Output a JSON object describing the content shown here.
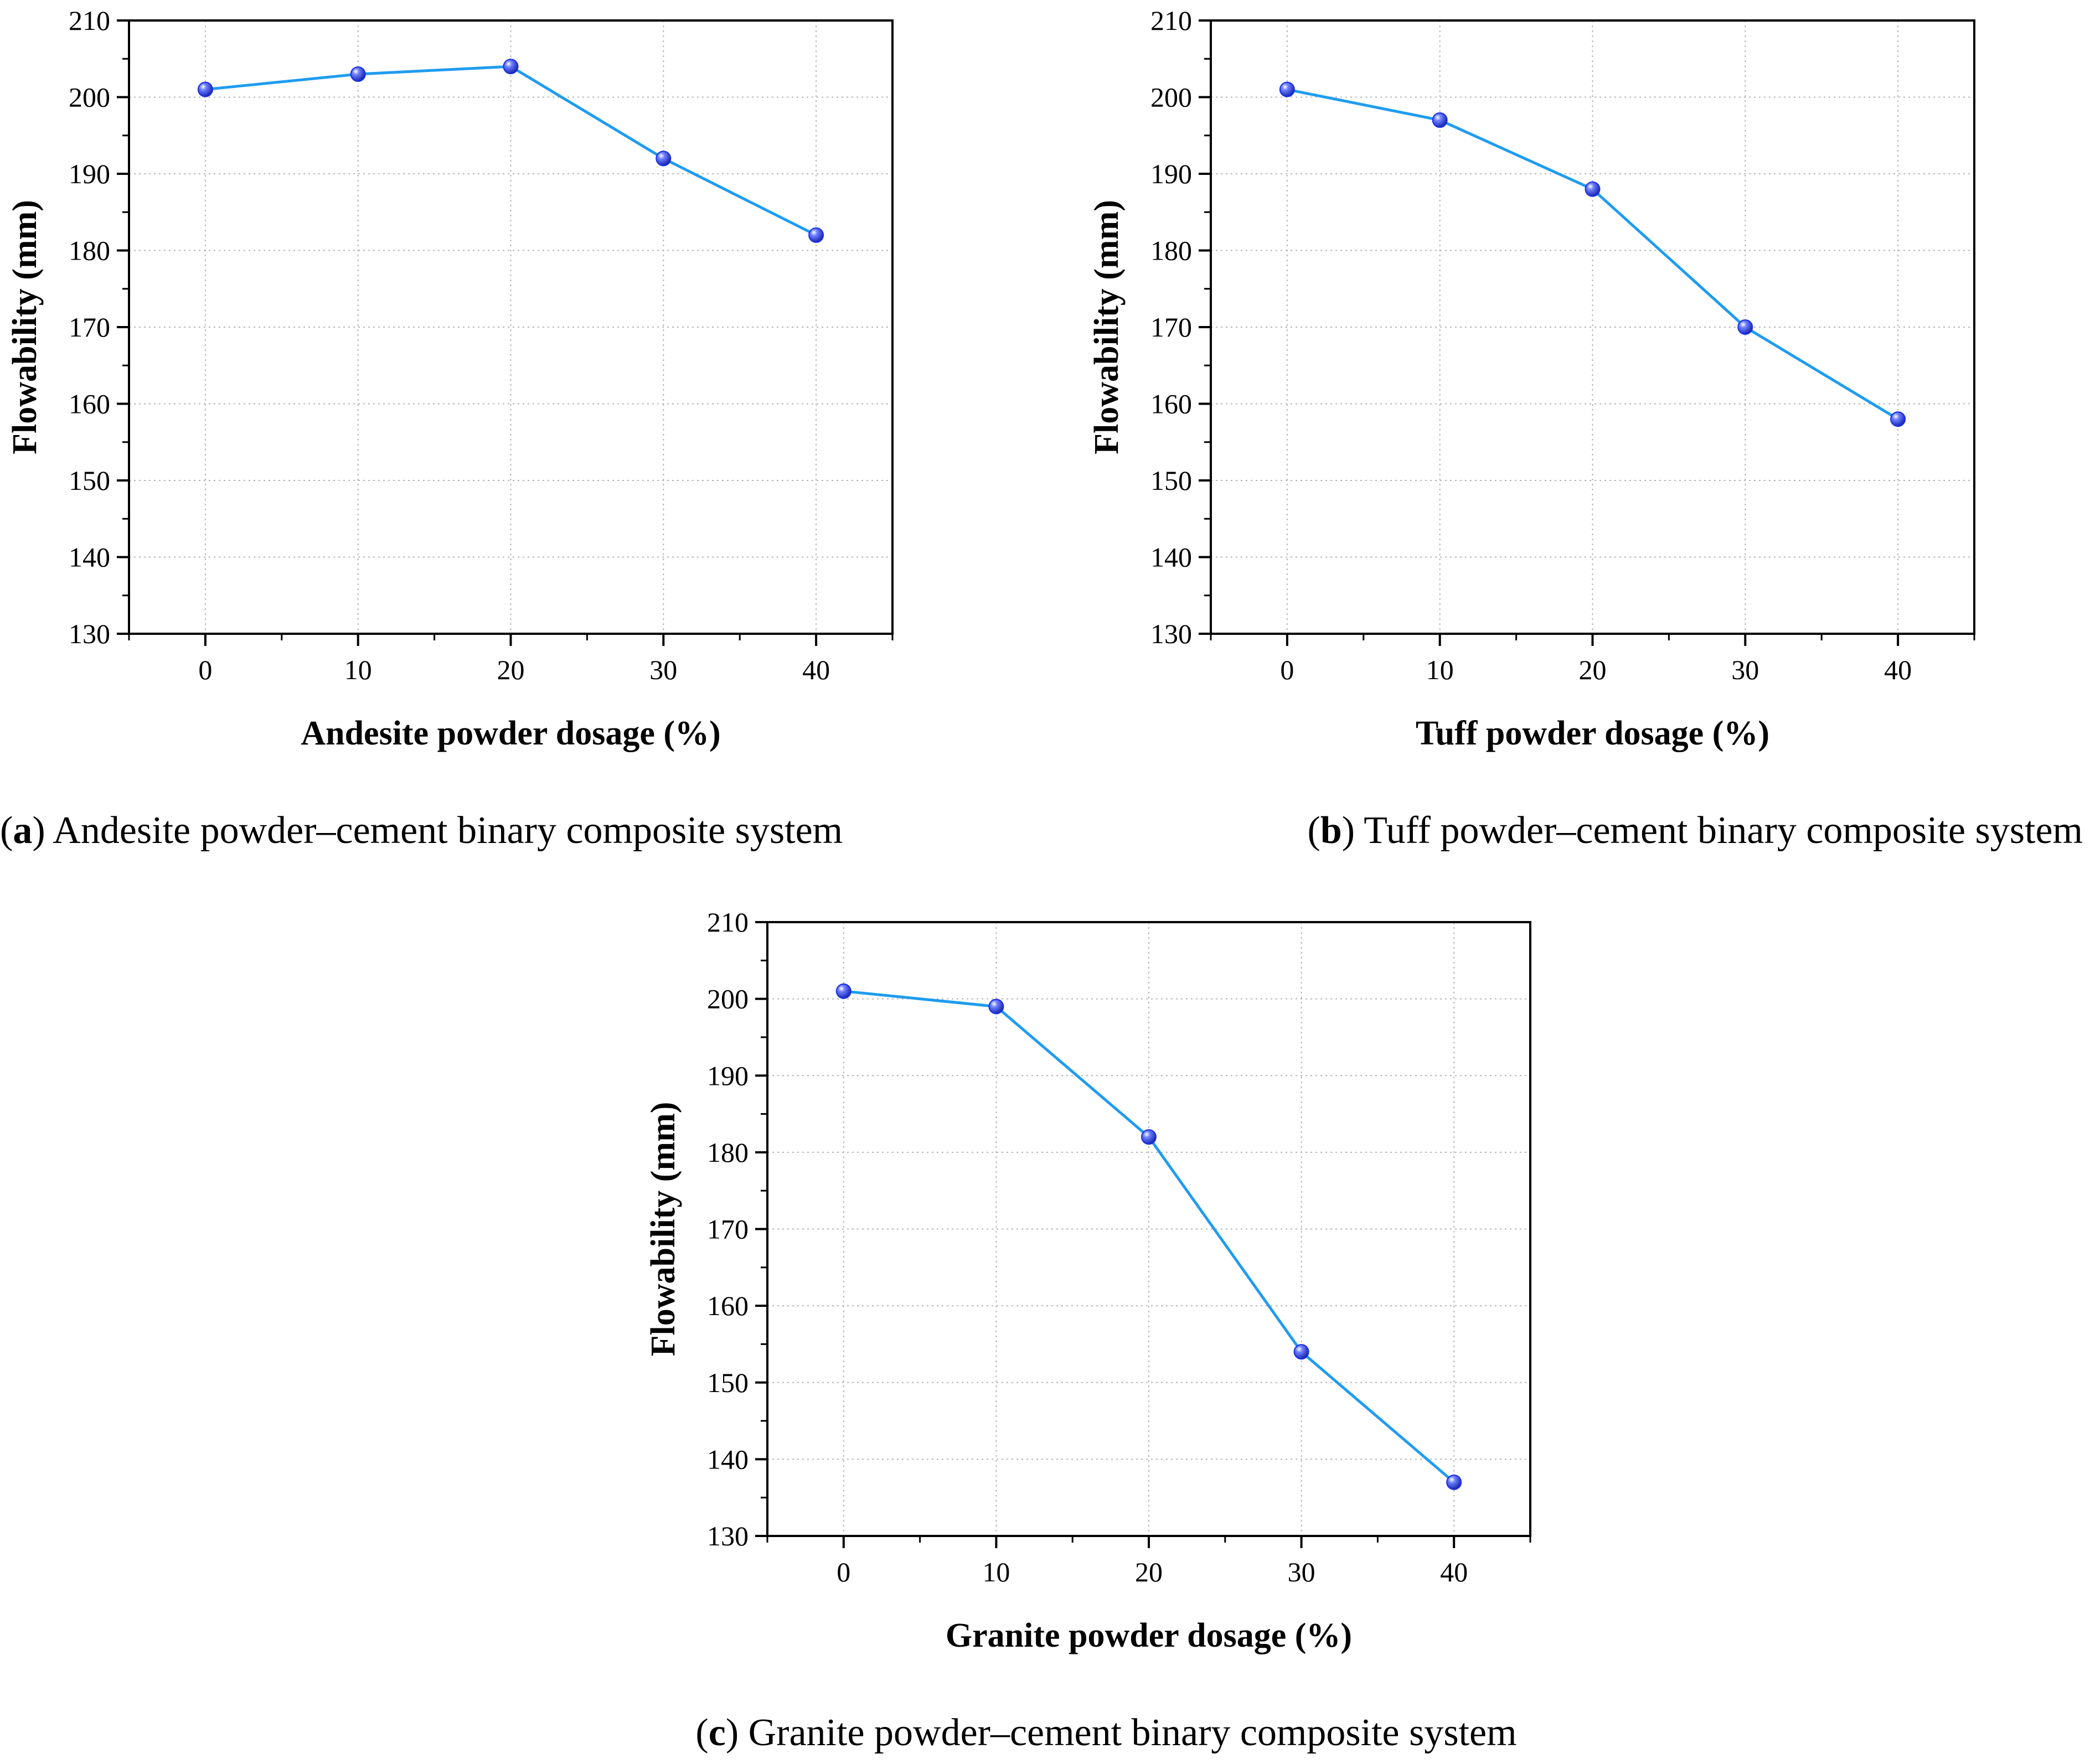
{
  "figure": {
    "captions": [
      {
        "letter": "a",
        "text": " Andesite powder–cement binary composite system"
      },
      {
        "letter": "b",
        "text": " Tuff powder–cement binary composite system"
      },
      {
        "letter": "c",
        "text": " Granite powder–cement binary composite system"
      }
    ]
  },
  "colors": {
    "line": "#1e9cf0",
    "marker": "#1a2fe6",
    "grid": "#b4b4b4",
    "axis": "#000000"
  },
  "chart_data": [
    {
      "type": "line",
      "title": "",
      "xlabel": "Andesite powder dosage (%)",
      "ylabel": "Flowability (mm)",
      "x": [
        0,
        10,
        20,
        30,
        40
      ],
      "values": [
        201,
        203,
        204,
        192,
        182
      ],
      "xlim": [
        -5,
        45
      ],
      "ylim": [
        130,
        210
      ],
      "xticks": [
        "0",
        "10",
        "20",
        "30",
        "40"
      ],
      "yticks": [
        "130",
        "140",
        "150",
        "160",
        "170",
        "180",
        "190",
        "200",
        "210"
      ],
      "grid": true
    },
    {
      "type": "line",
      "title": "",
      "xlabel": "Tuff powder dosage (%)",
      "ylabel": "Flowability (mm)",
      "x": [
        0,
        10,
        20,
        30,
        40
      ],
      "values": [
        201,
        197,
        188,
        170,
        158
      ],
      "xlim": [
        -5,
        45
      ],
      "ylim": [
        130,
        210
      ],
      "xticks": [
        "0",
        "10",
        "20",
        "30",
        "40"
      ],
      "yticks": [
        "130",
        "140",
        "150",
        "160",
        "170",
        "180",
        "190",
        "200",
        "210"
      ],
      "grid": true
    },
    {
      "type": "line",
      "title": "",
      "xlabel": "Granite powder dosage (%)",
      "ylabel": "Flowability (mm)",
      "x": [
        0,
        10,
        20,
        30,
        40
      ],
      "values": [
        201,
        199,
        182,
        154,
        137
      ],
      "xlim": [
        -5,
        45
      ],
      "ylim": [
        130,
        210
      ],
      "xticks": [
        "0",
        "10",
        "20",
        "30",
        "40"
      ],
      "yticks": [
        "130",
        "140",
        "150",
        "160",
        "170",
        "180",
        "190",
        "200",
        "210"
      ],
      "grid": true
    }
  ]
}
